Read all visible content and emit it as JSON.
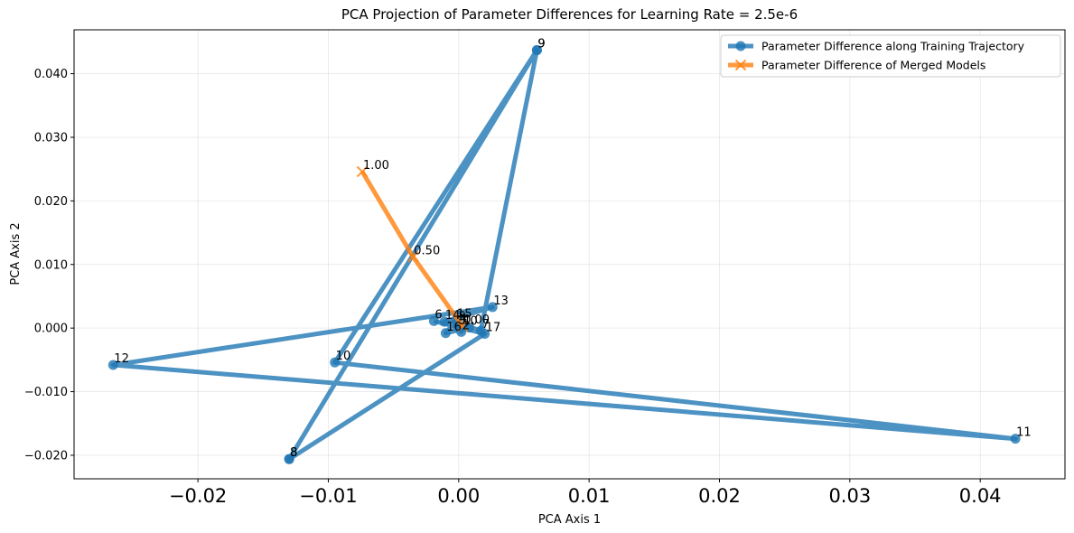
{
  "chart_data": {
    "type": "line",
    "title": "PCA Projection of Parameter Differences for Learning Rate = 2.5e-6",
    "xlabel": "PCA Axis 1",
    "ylabel": "PCA Axis 2",
    "xlim": [
      -0.0295,
      0.0465
    ],
    "ylim": [
      -0.0237,
      0.0469
    ],
    "grid": true,
    "legend_position": "top-right",
    "x_ticks": [
      -0.02,
      -0.01,
      0.0,
      0.01,
      0.02,
      0.03,
      0.04
    ],
    "x_tick_labels": [
      "−0.02",
      "−0.01",
      "0.00",
      "0.01",
      "0.02",
      "0.03",
      "0.04"
    ],
    "y_ticks": [
      -0.02,
      -0.01,
      0.0,
      0.01,
      0.02,
      0.03,
      0.04
    ],
    "y_tick_labels": [
      "−0.020",
      "−0.010",
      "0.000",
      "0.010",
      "0.020",
      "0.030",
      "0.040"
    ],
    "series": [
      {
        "name": "Parameter Difference along Training Trajectory",
        "color": "#1f77b4",
        "marker": "circle",
        "points": [
          {
            "label": "6",
            "x": -0.0019,
            "y": 0.0011
          },
          {
            "label": "17",
            "x": 0.002,
            "y": -0.0009
          },
          {
            "label": "8",
            "x": -0.013,
            "y": -0.0206
          },
          {
            "label": "9",
            "x": 0.006,
            "y": 0.0437
          },
          {
            "label": "10",
            "x": -0.0095,
            "y": -0.0054
          },
          {
            "label": "11",
            "x": 0.0427,
            "y": -0.0174
          },
          {
            "label": "12",
            "x": -0.0265,
            "y": -0.0058
          },
          {
            "label": "13",
            "x": 0.0026,
            "y": 0.0033
          },
          {
            "label": "14",
            "x": -0.0011,
            "y": 0.001
          },
          {
            "label": "15",
            "x": -0.0002,
            "y": 0.0012
          },
          {
            "label": "16",
            "x": -0.001,
            "y": -0.0008
          },
          {
            "label": "0",
            "x": 0.0008,
            "y": 0.0001
          },
          {
            "label": "1",
            "x": 0.0003,
            "y": 0.0002
          },
          {
            "label": "2",
            "x": 0.0002,
            "y": -0.0006
          },
          {
            "label": "3",
            "x": -0.0001,
            "y": 0.0002
          },
          {
            "label": "4",
            "x": 0.0,
            "y": 0.0005
          },
          {
            "label": "5",
            "x": -0.0001,
            "y": 0.0008
          },
          {
            "label": "7",
            "x": 0.0017,
            "y": -0.0004
          },
          {
            "label": "9",
            "x": 0.006,
            "y": 0.0437
          },
          {
            "label": "8",
            "x": -0.013,
            "y": -0.0206
          }
        ]
      },
      {
        "name": "Parameter Difference of Merged Models",
        "color": "#ff7f0e",
        "marker": "x",
        "points": [
          {
            "label": "1.00",
            "x": -0.0074,
            "y": 0.0246
          },
          {
            "label": "0.50",
            "x": -0.0035,
            "y": 0.0112
          },
          {
            "label": "0.00",
            "x": 0.0003,
            "y": 0.0003
          }
        ]
      }
    ]
  }
}
